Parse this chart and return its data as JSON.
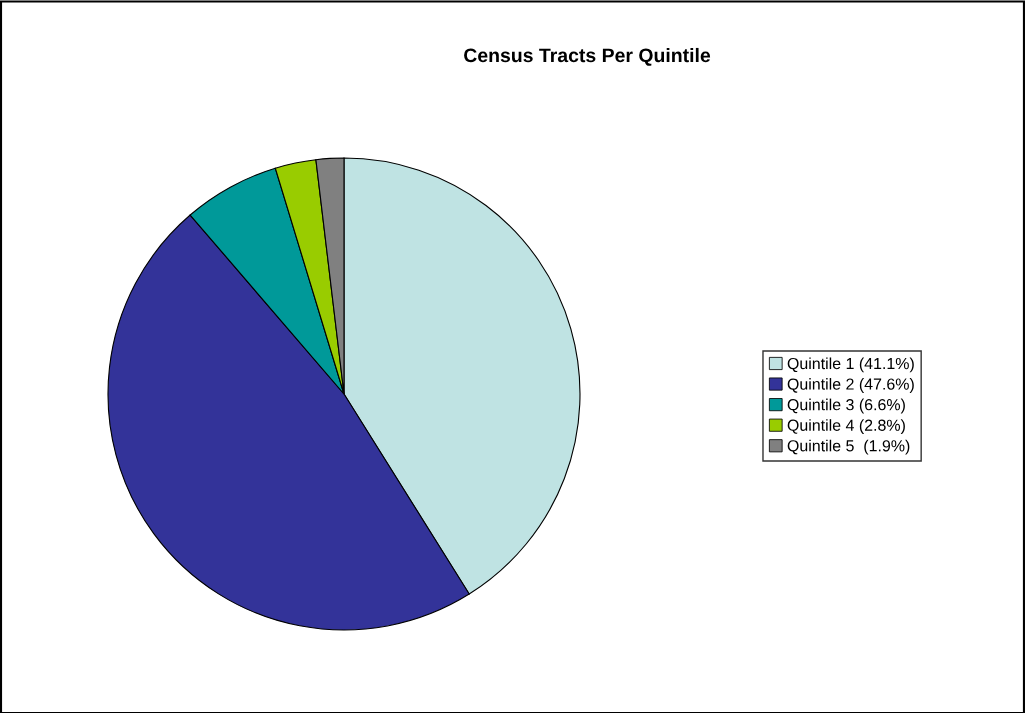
{
  "chart_data": {
    "type": "pie",
    "title": "Census Tracts Per Quintile",
    "categories": [
      "Quintile 1 (41.1%)",
      "Quintile 2 (47.6%)",
      "Quintile 3 (6.6%)",
      "Quintile 4 (2.8%)",
      "Quintile 5  (1.9%)"
    ],
    "values": [
      41.1,
      47.6,
      6.6,
      2.8,
      1.9
    ],
    "colors": [
      "#bfe3e3",
      "#333399",
      "#009999",
      "#99cc00",
      "#808080"
    ],
    "legend": "right"
  }
}
